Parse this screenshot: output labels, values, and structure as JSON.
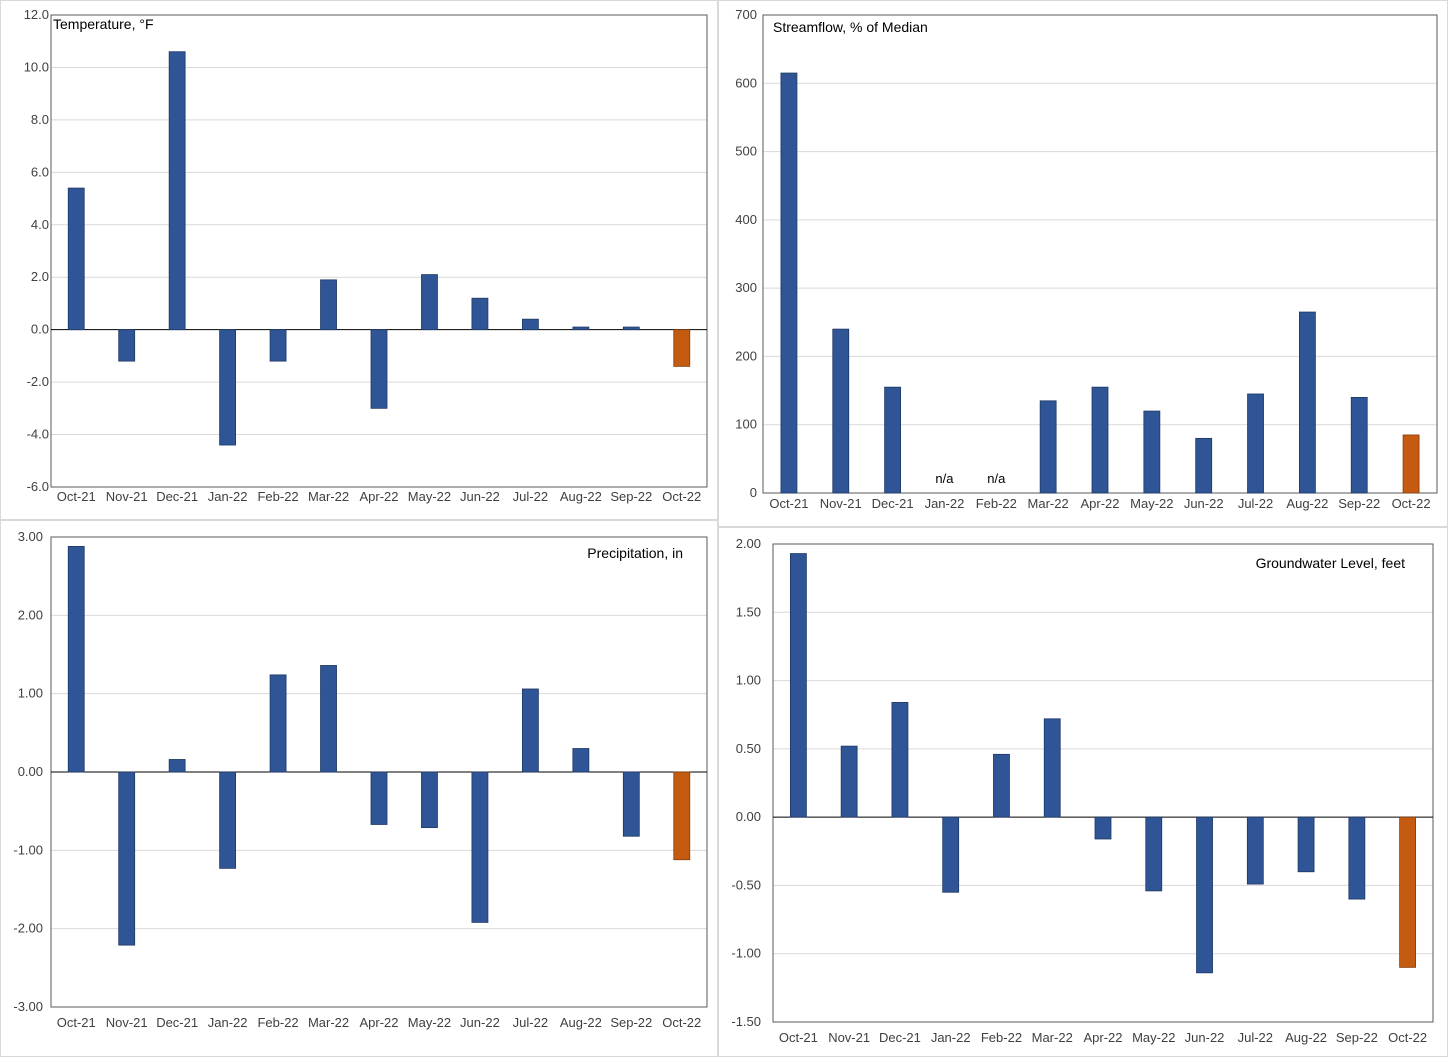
{
  "colors": {
    "bar": "#2f5597",
    "current": "#c55a11",
    "grid": "#d9d9d9"
  },
  "chart_data": [
    {
      "type": "bar",
      "title": "Temperature, °F",
      "categories": [
        "Oct-21",
        "Nov-21",
        "Dec-21",
        "Jan-22",
        "Feb-22",
        "Mar-22",
        "Apr-22",
        "May-22",
        "Jun-22",
        "Jul-22",
        "Aug-22",
        "Sep-22",
        "Oct-22"
      ],
      "values": [
        5.4,
        -1.2,
        10.6,
        -4.4,
        -1.2,
        1.9,
        -3.0,
        2.1,
        1.2,
        0.4,
        0.1,
        0.1,
        -1.4
      ],
      "ylim": [
        -6.0,
        12.0
      ],
      "yticks": [
        "12.0",
        "10.0",
        "8.0",
        "6.0",
        "4.0",
        "2.0",
        "0.0",
        "-2.0",
        "-4.0",
        "-6.0"
      ],
      "title_position": "top-left",
      "grid": true
    },
    {
      "type": "bar",
      "title": "Streamflow, % of Median",
      "categories": [
        "Oct-21",
        "Nov-21",
        "Dec-21",
        "Jan-22",
        "Feb-22",
        "Mar-22",
        "Apr-22",
        "May-22",
        "Jun-22",
        "Jul-22",
        "Aug-22",
        "Sep-22",
        "Oct-22"
      ],
      "values": [
        615,
        240,
        155,
        null,
        null,
        135,
        155,
        120,
        80,
        145,
        265,
        140,
        85
      ],
      "missing_label": "n/a",
      "ylim": [
        0,
        700
      ],
      "yticks": [
        "700",
        "600",
        "500",
        "400",
        "300",
        "200",
        "100",
        "0"
      ],
      "title_position": "top-left",
      "grid": true
    },
    {
      "type": "bar",
      "title": "Precipitation, in",
      "categories": [
        "Oct-21",
        "Nov-21",
        "Dec-21",
        "Jan-22",
        "Feb-22",
        "Mar-22",
        "Apr-22",
        "May-22",
        "Jun-22",
        "Jul-22",
        "Aug-22",
        "Sep-22",
        "Oct-22"
      ],
      "values": [
        2.88,
        -2.21,
        0.16,
        -1.23,
        1.24,
        1.36,
        -0.67,
        -0.71,
        -1.92,
        1.06,
        0.3,
        -0.82,
        -1.12
      ],
      "ylim": [
        -3.0,
        3.0
      ],
      "yticks": [
        "3.00",
        "2.00",
        "1.00",
        "0.00",
        "-1.00",
        "-2.00",
        "-3.00"
      ],
      "title_position": "top-right",
      "grid": true
    },
    {
      "type": "bar",
      "title": "Groundwater Level, feet",
      "categories": [
        "Oct-21",
        "Nov-21",
        "Dec-21",
        "Jan-22",
        "Feb-22",
        "Mar-22",
        "Apr-22",
        "May-22",
        "Jun-22",
        "Jul-22",
        "Aug-22",
        "Sep-22",
        "Oct-22"
      ],
      "values": [
        1.93,
        0.52,
        0.84,
        -0.55,
        0.46,
        0.72,
        -0.16,
        -0.54,
        -1.14,
        -0.49,
        -0.4,
        -0.6,
        -1.1
      ],
      "ylim": [
        -1.5,
        2.0
      ],
      "yticks": [
        "2.00",
        "1.50",
        "1.00",
        "0.50",
        "0.00",
        "-0.50",
        "-1.00",
        "-1.50"
      ],
      "title_position": "top-right",
      "grid": true
    }
  ]
}
